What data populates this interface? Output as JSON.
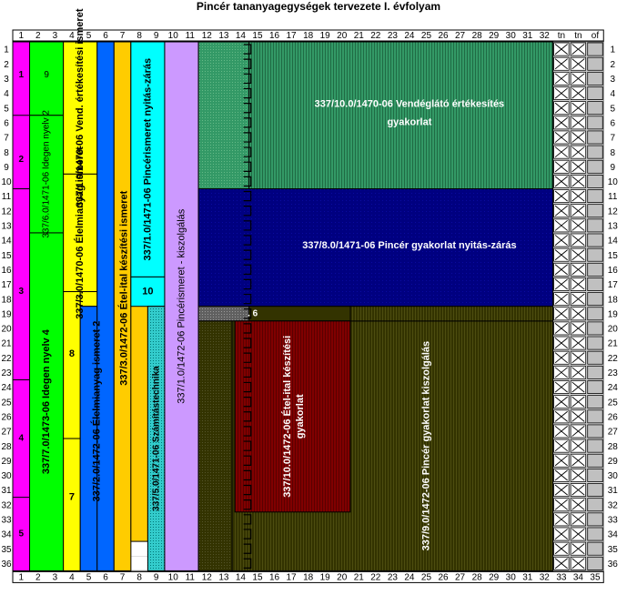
{
  "title": "Pincér tananyagegységek tervezete I. évfolyam",
  "col_numbers": [
    "1",
    "2",
    "3",
    "4",
    "5",
    "6",
    "7",
    "8",
    "9",
    "10",
    "11",
    "12",
    "13",
    "14",
    "15",
    "16",
    "17",
    "18",
    "19",
    "20",
    "21",
    "22",
    "23",
    "24",
    "25",
    "26",
    "27",
    "28",
    "29",
    "30",
    "31",
    "32",
    "33",
    "34",
    "35"
  ],
  "top_extra_labels": [
    "tn",
    "tn",
    "of"
  ],
  "row_numbers": [
    "1",
    "2",
    "3",
    "4",
    "5",
    "6",
    "7",
    "8",
    "9",
    "10",
    "11",
    "12",
    "13",
    "14",
    "15",
    "16",
    "17",
    "18",
    "19",
    "20",
    "21",
    "22",
    "23",
    "24",
    "25",
    "26",
    "27",
    "28",
    "29",
    "30",
    "31",
    "32",
    "33",
    "34",
    "35",
    "36"
  ],
  "labels": {
    "col1_1": "1",
    "col1_2": "2",
    "col1_3": "3",
    "col1_4": "4",
    "col1_5": "5",
    "g9": "9",
    "idegen2": "337/6.0/1471-06 Idegen nyelv 2",
    "idegen4": "337/7.0/1473-06 Idegen nyelv 4",
    "vend_ert_ism": "337/1.0/1470-06 Vend. értékesítési ismeret",
    "elelm_ism": "337/3.0/1470-06 Élelmianyag ismeret",
    "y8": "8",
    "y7": "7",
    "elelm_ism2": "337/2.0/1472-06 Élelmianyag ismeret 2",
    "etel_ital_ism": "337/3.0/1472-06 Étel-ital készítési ismeret",
    "pincer_nyit_ism": "337/1.0/1471-06 Pincérismeret nyitás-zárás",
    "c10": "10",
    "szamitas": "337/5.0/1471-06 Számítástechnika",
    "pincer_kiszolg": "337/1.0/1472-06 Pincérismeret - kiszolgálás",
    "vend_gyak_1": "337/10.0/1470-06 Vendéglátó értékesítés",
    "vend_gyak_2": "gyakorlat",
    "pincer_nyit_gyak": "337/8.0/1471-06 Pincér gyakorlat nyitás-zárás",
    "six": ". 6",
    "etel_gyak_1": "337/10.0/1472-06 Étel-ital készítési",
    "etel_gyak_2": "gyakorlat",
    "pincer_kiszolg_gyak": "337/9.0/1472-06 Pincér gyakorlat kiszolgálás"
  },
  "colors": {
    "magenta": "#ff00ff",
    "green": "#00ff00",
    "yellow": "#ffff00",
    "blue": "#0066ff",
    "orange": "#ffcc00",
    "cyan": "#00ffff",
    "lavender": "#cc99ff",
    "teal": "#339966",
    "navy": "#000080",
    "olive": "#333300",
    "maroon": "#800000",
    "gray": "#999999",
    "grid": "#c0c0c0"
  }
}
